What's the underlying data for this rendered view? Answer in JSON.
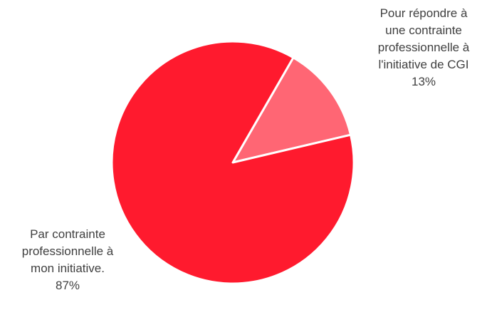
{
  "chart_data": {
    "type": "pie",
    "start_angle_deg": 90,
    "direction": "clockwise",
    "slices": [
      {
        "label_lines": [
          "Par contrainte",
          "professionnelle à",
          "mon initiative."
        ],
        "percent_label": "87%",
        "value": 87,
        "color": "#ff1a2e"
      },
      {
        "label_lines": [
          "Pour répondre à",
          "une contrainte",
          "professionnelle à",
          "l'initiative de CGI"
        ],
        "percent_label": "13%",
        "value": 13,
        "color": "#ff6674"
      }
    ],
    "slice_order_from_top": [
      1,
      0
    ],
    "separator_color": "#ffffff"
  }
}
